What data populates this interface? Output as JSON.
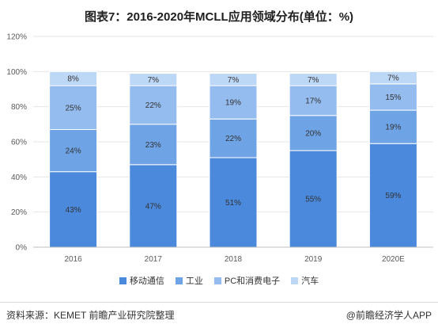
{
  "title": "图表7：2016-2020年MCLL应用领域分布(单位：%)",
  "chart_data": {
    "type": "bar",
    "stacked": true,
    "title": "图表7：2016-2020年MCLL应用领域分布(单位：%)",
    "xlabel": "",
    "ylabel": "",
    "ylim": [
      0,
      120
    ],
    "yticks": [
      "0%",
      "20%",
      "40%",
      "60%",
      "80%",
      "100%",
      "120%"
    ],
    "grid": "horizontal",
    "legend_position": "bottom",
    "categories": [
      "2016",
      "2017",
      "2018",
      "2019",
      "2020E"
    ],
    "series": [
      {
        "name": "移动通信",
        "color": "#4a89dc",
        "values": [
          43,
          47,
          51,
          55,
          59
        ],
        "labels": [
          "43%",
          "47%",
          "51%",
          "55%",
          "59%"
        ]
      },
      {
        "name": "工业",
        "color": "#6ea3e6",
        "values": [
          24,
          23,
          22,
          20,
          19
        ],
        "labels": [
          "24%",
          "23%",
          "22%",
          "20%",
          "19%"
        ]
      },
      {
        "name": "PC和消费电子",
        "color": "#94bcef",
        "values": [
          25,
          22,
          19,
          17,
          15
        ],
        "labels": [
          "25%",
          "22%",
          "19%",
          "17%",
          "15%"
        ]
      },
      {
        "name": "汽车",
        "color": "#bdd7f6",
        "values": [
          8,
          7,
          7,
          7,
          7
        ],
        "labels": [
          "8%",
          "7%",
          "7%",
          "7%",
          "7%"
        ]
      }
    ]
  },
  "footer": {
    "source": "资料来源：KEMET 前瞻产业研究院整理",
    "brand": "@前瞻经济学人APP"
  }
}
